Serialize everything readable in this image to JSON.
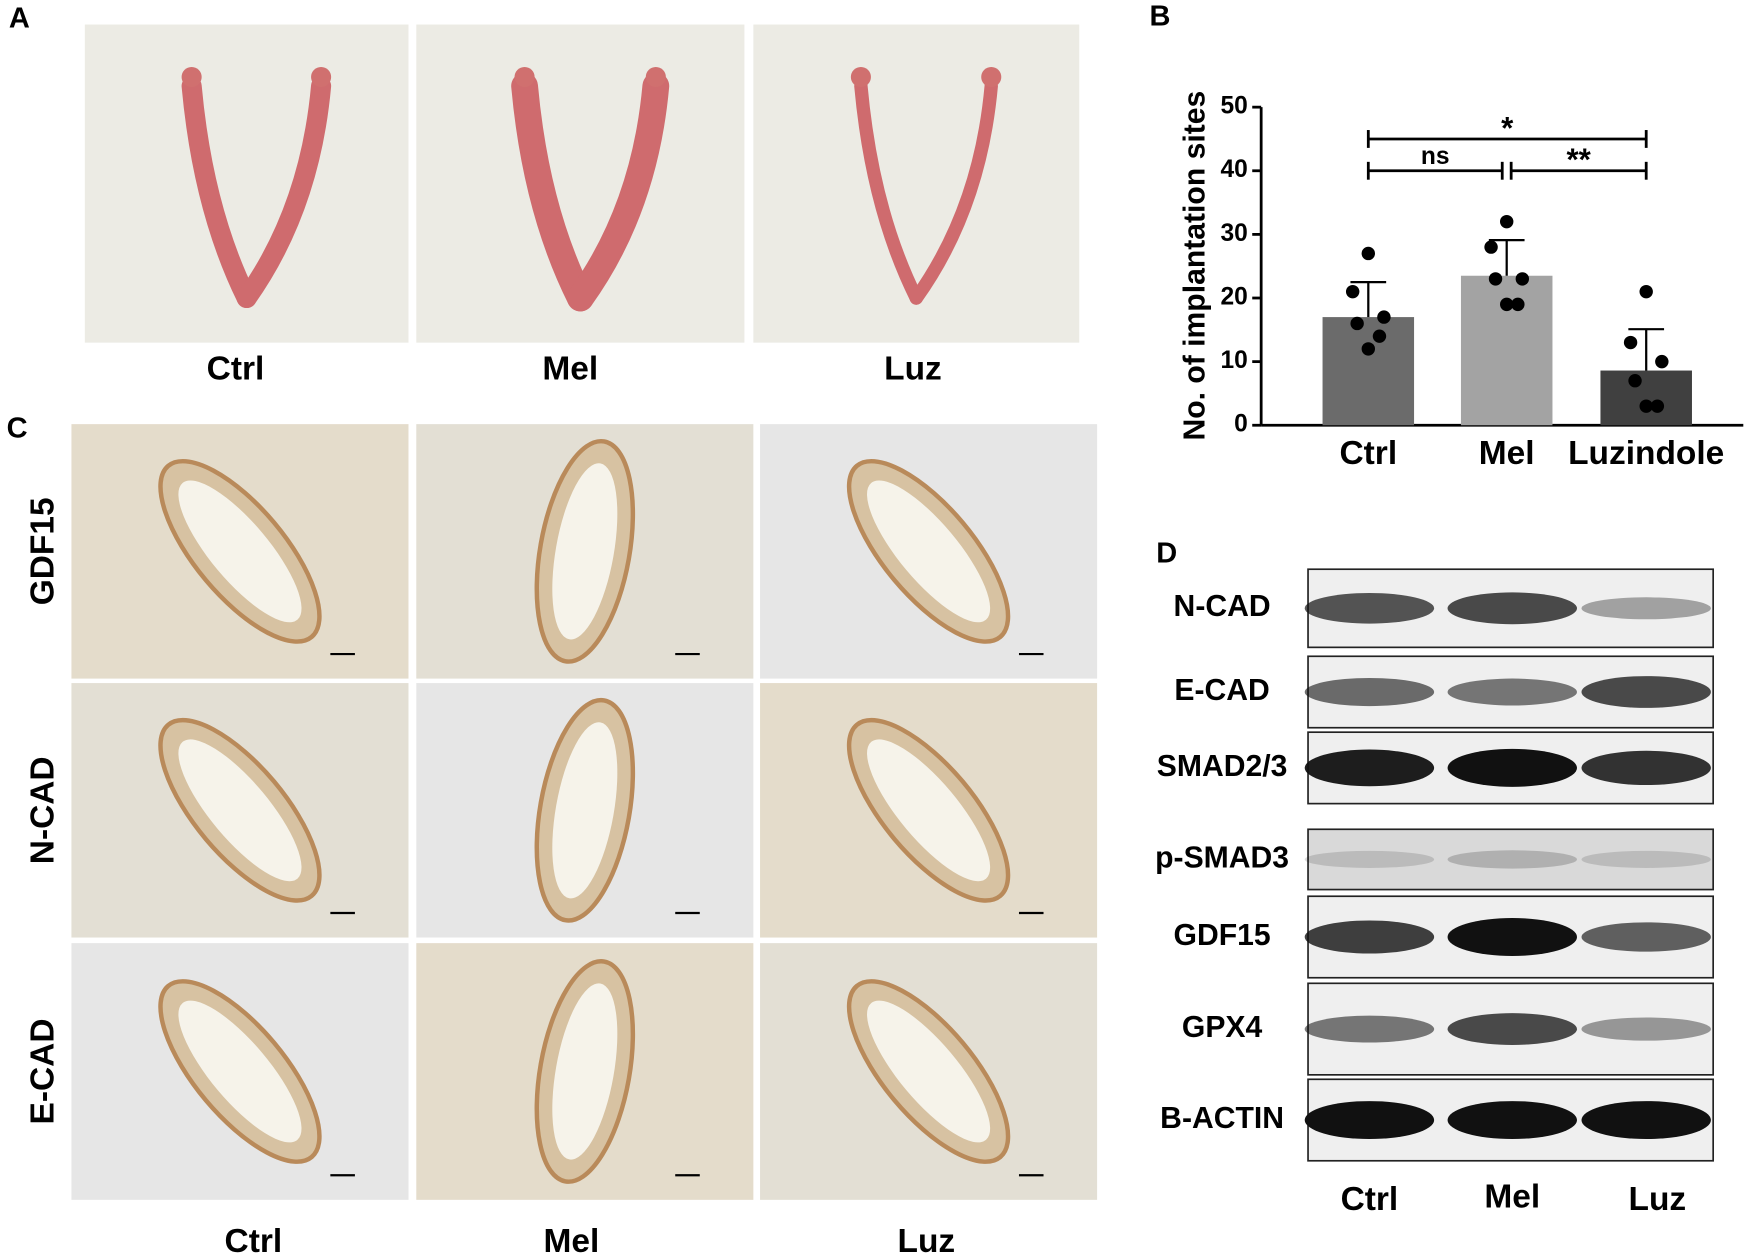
{
  "panel_labels": [
    "A",
    "B",
    "C",
    "D"
  ],
  "panel_a": {
    "groups": [
      "Ctrl",
      "Mel",
      "Luz"
    ]
  },
  "panel_c": {
    "rows": [
      "GDF15",
      "N-CAD",
      "E-CAD"
    ],
    "groups": [
      "Ctrl",
      "Mel",
      "Luz"
    ]
  },
  "panel_d": {
    "proteins": [
      "N-CAD",
      "E-CAD",
      "SMAD2/3",
      "p-SMAD3",
      "GDF15",
      "GPX4",
      "B-ACTIN"
    ],
    "groups": [
      "Ctrl",
      "Mel",
      "Luz"
    ]
  },
  "chart_data": {
    "type": "bar",
    "ylabel": "No. of implantation sites",
    "categories": [
      "Ctrl",
      "Mel",
      "Luzindole"
    ],
    "values": [
      17,
      23.5,
      8.6
    ],
    "errors": [
      5.5,
      5.6,
      6.5
    ],
    "colors": [
      "#6b6b6b",
      "#a3a3a3",
      "#404040"
    ],
    "points": [
      [
        27,
        21,
        17,
        16,
        14,
        12
      ],
      [
        32,
        28,
        23,
        23,
        19,
        19
      ],
      [
        21,
        13,
        10,
        7,
        3,
        3
      ]
    ],
    "ylim": [
      0,
      50
    ],
    "yticks": [
      0,
      10,
      20,
      30,
      40,
      50
    ],
    "significance": [
      {
        "label": "*",
        "y": 45
      },
      {
        "label": "ns",
        "y": 40
      },
      {
        "label": "**",
        "y": 40
      }
    ]
  }
}
